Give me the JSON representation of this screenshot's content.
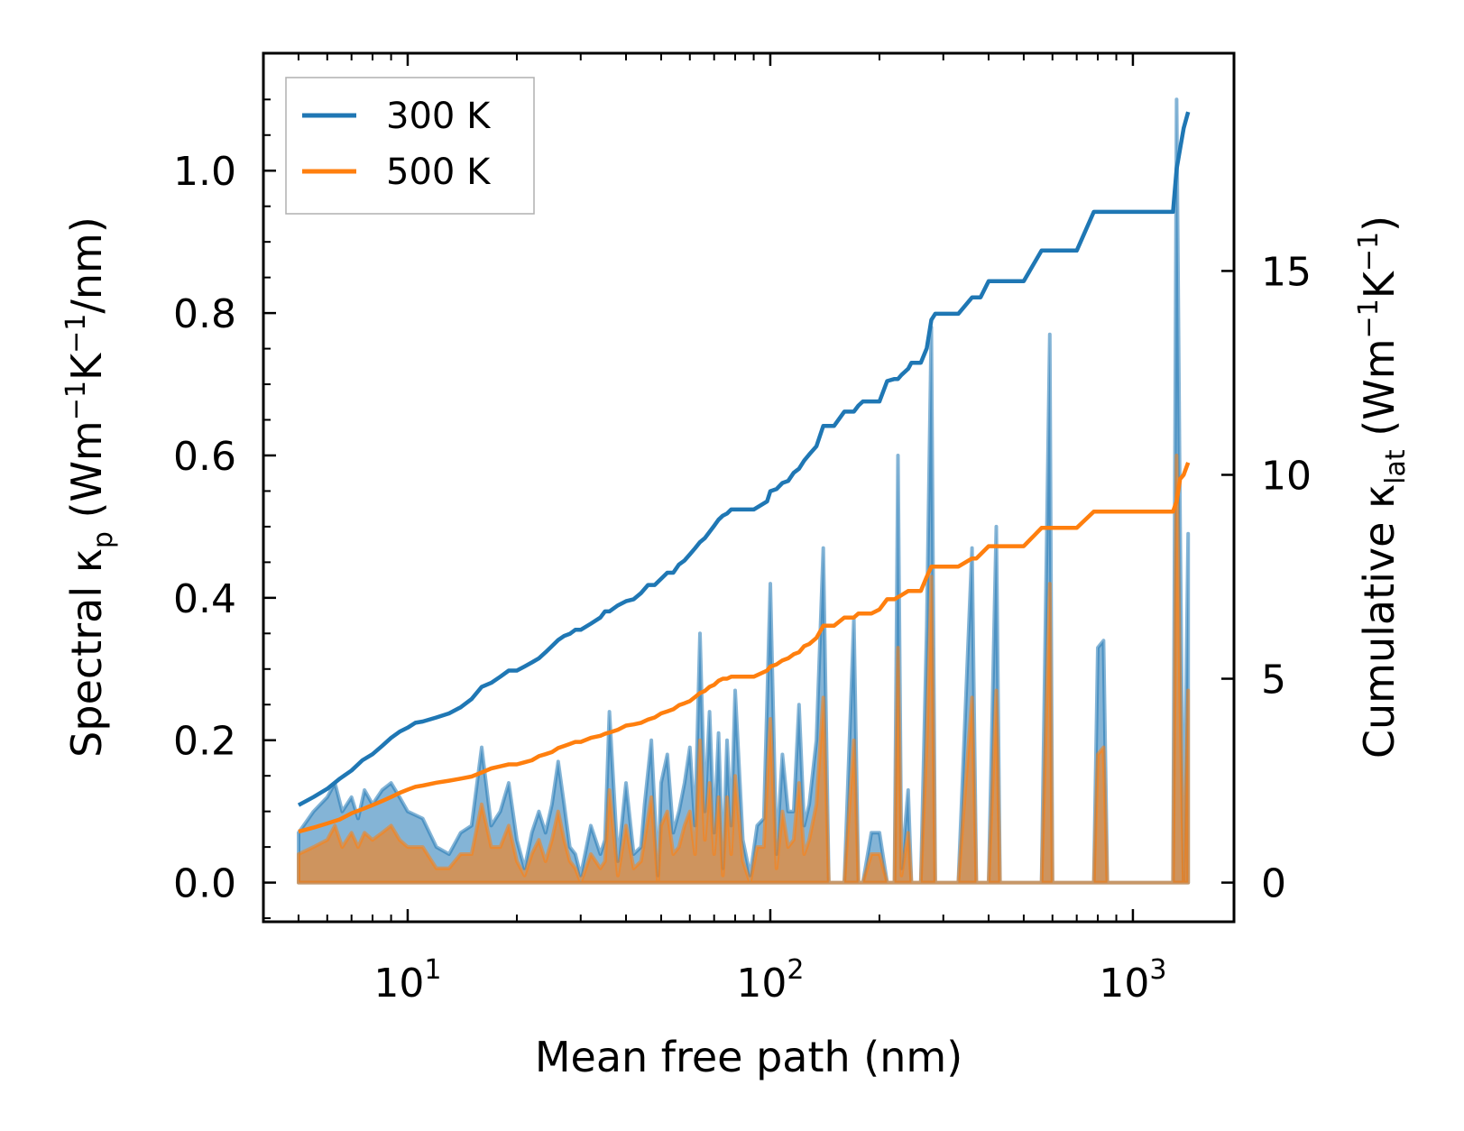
{
  "chart_data": {
    "type": "line",
    "title": "",
    "xlabel": "Mean free path (nm)",
    "ylabel_left_parts": {
      "pre": "Spectral κ",
      "sub": "p",
      "mid": " (Wm",
      "sup1": "−1",
      "mid2": "K",
      "sup2": "−1",
      "post": "/nm)"
    },
    "ylabel_right_parts": {
      "pre": "Cumulative κ",
      "sub": "lat",
      "mid": " (Wm",
      "sup1": "−1",
      "mid2": "K",
      "sup2": "−1",
      "post": ")"
    },
    "xscale": "log",
    "xlim": [
      4.0,
      1900
    ],
    "ylim_left": [
      -0.055,
      1.165
    ],
    "ylim_right": [
      -0.96,
      20.34
    ],
    "x_ticks": [
      {
        "value": 10,
        "base": "10",
        "exp": "1"
      },
      {
        "value": 100,
        "base": "10",
        "exp": "2"
      },
      {
        "value": 1000,
        "base": "10",
        "exp": "3"
      }
    ],
    "y_left_ticks": [
      {
        "value": 0.0,
        "label": "0.0"
      },
      {
        "value": 0.2,
        "label": "0.2"
      },
      {
        "value": 0.4,
        "label": "0.4"
      },
      {
        "value": 0.6,
        "label": "0.6"
      },
      {
        "value": 0.8,
        "label": "0.8"
      },
      {
        "value": 1.0,
        "label": "1.0"
      }
    ],
    "y_right_ticks": [
      {
        "value": 0,
        "label": "0"
      },
      {
        "value": 5,
        "label": "5"
      },
      {
        "value": 10,
        "label": "10"
      },
      {
        "value": 15,
        "label": "15"
      }
    ],
    "legend": {
      "position": "top-left",
      "entries": [
        {
          "label": "300 K",
          "color": "#1f77b4"
        },
        {
          "label": "500 K",
          "color": "#ff7f0e"
        }
      ]
    },
    "series": [
      {
        "name": "300 K",
        "color": "#1f77b4",
        "spectral": {
          "x": [
            5,
            5.5,
            6,
            6.3,
            6.6,
            7,
            7.3,
            7.6,
            8,
            8.5,
            9,
            9.5,
            10,
            11,
            12,
            13,
            14,
            15,
            16,
            17,
            18,
            19,
            20,
            21,
            22,
            23,
            24,
            25,
            26,
            27,
            28,
            29,
            30,
            32,
            34,
            35,
            36,
            38,
            40,
            42,
            44,
            45,
            47,
            49,
            50,
            52,
            54,
            56,
            58,
            60,
            62,
            64,
            66,
            68,
            70,
            72,
            74,
            76,
            78,
            80,
            84,
            88,
            92,
            96,
            100,
            104,
            108,
            112,
            116,
            120,
            124,
            128,
            134,
            140,
            145,
            150,
            160,
            170,
            175,
            180,
            190,
            200,
            210,
            220,
            225,
            230,
            240,
            245,
            250,
            260,
            270,
            278,
            285,
            300,
            330,
            360,
            370,
            380,
            400,
            420,
            430,
            440,
            500,
            560,
            590,
            600,
            650,
            700,
            780,
            800,
            830,
            850,
            1000,
            1200,
            1290,
            1320,
            1350,
            1380,
            1420
          ],
          "y": [
            0.07,
            0.1,
            0.12,
            0.14,
            0.1,
            0.12,
            0.09,
            0.13,
            0.11,
            0.13,
            0.14,
            0.12,
            0.1,
            0.09,
            0.05,
            0.04,
            0.07,
            0.08,
            0.19,
            0.08,
            0.1,
            0.14,
            0.06,
            0.02,
            0.07,
            0.1,
            0.07,
            0.11,
            0.17,
            0.11,
            0.05,
            0.04,
            0.01,
            0.08,
            0.04,
            0.06,
            0.24,
            0.03,
            0.14,
            0.04,
            0.05,
            0.11,
            0.2,
            0.01,
            0.14,
            0.18,
            0.07,
            0.1,
            0.14,
            0.19,
            0.08,
            0.35,
            0.1,
            0.24,
            0.07,
            0.21,
            0.02,
            0.2,
            0.08,
            0.27,
            0.06,
            0.01,
            0.08,
            0.09,
            0.42,
            0.04,
            0.18,
            0.1,
            0.1,
            0.25,
            0.08,
            0.11,
            0.2,
            0.47,
            0.0,
            0.0,
            0.0,
            0.37,
            0.0,
            0.0,
            0.07,
            0.07,
            0.0,
            0.0,
            0.6,
            0.02,
            0.13,
            0.0,
            0.0,
            0.0,
            0.36,
            0.78,
            0.0,
            0.0,
            0.0,
            0.47,
            0.0,
            0.0,
            0.0,
            0.5,
            0.0,
            0.0,
            0.0,
            0.0,
            0.77,
            0.0,
            0.0,
            0.0,
            0.0,
            0.33,
            0.34,
            0.0,
            0.0,
            0.0,
            0.0,
            1.1,
            0.5,
            0.0,
            0.49
          ]
        },
        "cumulative": {
          "x": [
            5,
            5.5,
            6,
            6.5,
            7,
            7.5,
            8,
            8.5,
            9,
            9.5,
            10,
            10.5,
            11,
            12,
            13,
            14,
            15,
            16,
            17,
            18,
            19,
            20,
            21,
            22,
            23,
            24,
            25,
            26,
            27,
            28,
            29,
            30,
            32,
            34,
            35,
            36,
            38,
            40,
            42,
            44,
            46,
            48,
            50,
            52,
            54,
            56,
            58,
            60,
            62,
            64,
            66,
            68,
            70,
            72,
            74,
            76,
            78,
            80,
            90,
            98,
            100,
            104,
            108,
            112,
            116,
            120,
            124,
            128,
            134,
            140,
            145,
            150,
            160,
            170,
            175,
            180,
            190,
            200,
            210,
            220,
            225,
            230,
            240,
            245,
            250,
            260,
            270,
            278,
            285,
            300,
            330,
            360,
            370,
            380,
            400,
            420,
            430,
            440,
            500,
            560,
            590,
            600,
            650,
            700,
            780,
            800,
            830,
            850,
            1000,
            1200,
            1290,
            1320,
            1350,
            1380,
            1420
          ],
          "y": [
            1.9,
            2.1,
            2.3,
            2.55,
            2.75,
            3.0,
            3.15,
            3.35,
            3.55,
            3.7,
            3.8,
            3.92,
            3.95,
            4.05,
            4.15,
            4.3,
            4.5,
            4.8,
            4.9,
            5.05,
            5.2,
            5.2,
            5.3,
            5.4,
            5.5,
            5.65,
            5.8,
            5.95,
            6.05,
            6.1,
            6.2,
            6.2,
            6.35,
            6.5,
            6.65,
            6.65,
            6.8,
            6.9,
            6.95,
            7.1,
            7.3,
            7.3,
            7.45,
            7.6,
            7.6,
            7.8,
            7.9,
            8.05,
            8.2,
            8.35,
            8.45,
            8.6,
            8.75,
            8.9,
            9.0,
            9.05,
            9.15,
            9.15,
            9.15,
            9.35,
            9.6,
            9.65,
            9.8,
            9.85,
            10.05,
            10.15,
            10.35,
            10.5,
            10.7,
            11.2,
            11.2,
            11.2,
            11.55,
            11.55,
            11.7,
            11.8,
            11.8,
            11.8,
            12.3,
            12.35,
            12.35,
            12.45,
            12.6,
            12.75,
            12.75,
            12.75,
            13.1,
            13.8,
            13.95,
            13.95,
            13.95,
            14.35,
            14.35,
            14.35,
            14.75,
            14.75,
            14.75,
            14.75,
            14.75,
            15.5,
            15.5,
            15.5,
            15.5,
            15.5,
            16.45,
            16.45,
            16.45,
            16.45,
            16.45,
            16.45,
            16.45,
            17.5,
            18.0,
            18.5,
            18.9
          ]
        }
      },
      {
        "name": "500 K",
        "color": "#ff7f0e",
        "spectral": {
          "x": [
            5,
            5.5,
            6,
            6.3,
            6.6,
            7,
            7.3,
            7.6,
            8,
            8.5,
            9,
            9.5,
            10,
            11,
            12,
            13,
            14,
            15,
            16,
            17,
            18,
            19,
            20,
            21,
            22,
            23,
            24,
            25,
            26,
            27,
            28,
            29,
            30,
            32,
            34,
            35,
            36,
            38,
            40,
            42,
            44,
            45,
            47,
            49,
            50,
            52,
            54,
            56,
            58,
            60,
            62,
            64,
            66,
            68,
            70,
            72,
            74,
            76,
            78,
            80,
            84,
            88,
            92,
            96,
            100,
            104,
            108,
            112,
            116,
            120,
            124,
            128,
            134,
            140,
            145,
            150,
            160,
            170,
            175,
            180,
            190,
            200,
            210,
            220,
            225,
            230,
            240,
            245,
            250,
            260,
            270,
            278,
            285,
            300,
            330,
            360,
            370,
            380,
            400,
            420,
            430,
            440,
            500,
            560,
            590,
            600,
            650,
            700,
            780,
            800,
            830,
            850,
            1000,
            1200,
            1290,
            1320,
            1350,
            1380,
            1420
          ],
          "y": [
            0.04,
            0.05,
            0.06,
            0.08,
            0.05,
            0.07,
            0.05,
            0.07,
            0.06,
            0.07,
            0.08,
            0.06,
            0.05,
            0.05,
            0.02,
            0.02,
            0.04,
            0.04,
            0.11,
            0.05,
            0.05,
            0.08,
            0.03,
            0.01,
            0.04,
            0.06,
            0.03,
            0.06,
            0.1,
            0.06,
            0.03,
            0.02,
            0.0,
            0.04,
            0.02,
            0.03,
            0.13,
            0.01,
            0.08,
            0.02,
            0.03,
            0.06,
            0.12,
            0.0,
            0.08,
            0.1,
            0.04,
            0.05,
            0.08,
            0.1,
            0.04,
            0.2,
            0.06,
            0.14,
            0.04,
            0.12,
            0.01,
            0.12,
            0.04,
            0.15,
            0.03,
            0.0,
            0.05,
            0.05,
            0.23,
            0.02,
            0.1,
            0.05,
            0.06,
            0.14,
            0.04,
            0.06,
            0.11,
            0.26,
            0.0,
            0.0,
            0.0,
            0.2,
            0.0,
            0.0,
            0.04,
            0.04,
            0.0,
            0.0,
            0.33,
            0.01,
            0.07,
            0.0,
            0.0,
            0.0,
            0.2,
            0.43,
            0.0,
            0.0,
            0.0,
            0.26,
            0.0,
            0.0,
            0.0,
            0.27,
            0.0,
            0.0,
            0.0,
            0.0,
            0.42,
            0.0,
            0.0,
            0.0,
            0.0,
            0.18,
            0.19,
            0.0,
            0.0,
            0.0,
            0.0,
            0.6,
            0.27,
            0.0,
            0.27
          ]
        },
        "cumulative": {
          "x": [
            5,
            5.5,
            6,
            6.5,
            7,
            7.5,
            8,
            8.5,
            9,
            9.5,
            10,
            10.5,
            11,
            12,
            13,
            14,
            15,
            16,
            17,
            18,
            19,
            20,
            21,
            22,
            23,
            24,
            25,
            26,
            27,
            28,
            29,
            30,
            32,
            34,
            35,
            36,
            38,
            40,
            42,
            44,
            46,
            48,
            50,
            52,
            54,
            56,
            58,
            60,
            62,
            64,
            66,
            68,
            70,
            72,
            74,
            76,
            78,
            80,
            90,
            98,
            100,
            104,
            108,
            112,
            116,
            120,
            124,
            128,
            134,
            140,
            145,
            150,
            160,
            170,
            175,
            180,
            190,
            200,
            210,
            220,
            225,
            230,
            240,
            245,
            250,
            260,
            270,
            278,
            285,
            300,
            330,
            360,
            370,
            380,
            400,
            420,
            430,
            440,
            500,
            560,
            590,
            600,
            650,
            700,
            780,
            800,
            830,
            850,
            1000,
            1200,
            1290,
            1320,
            1350,
            1380,
            1420
          ],
          "y": [
            1.25,
            1.35,
            1.45,
            1.55,
            1.7,
            1.8,
            1.9,
            2.0,
            2.1,
            2.2,
            2.28,
            2.35,
            2.38,
            2.45,
            2.5,
            2.55,
            2.6,
            2.7,
            2.8,
            2.85,
            2.9,
            2.9,
            2.95,
            3.0,
            3.1,
            3.15,
            3.2,
            3.3,
            3.35,
            3.4,
            3.45,
            3.45,
            3.55,
            3.6,
            3.65,
            3.68,
            3.75,
            3.85,
            3.88,
            3.92,
            4.0,
            4.05,
            4.15,
            4.2,
            4.25,
            4.35,
            4.4,
            4.45,
            4.55,
            4.65,
            4.7,
            4.8,
            4.85,
            4.95,
            5.0,
            5.0,
            5.05,
            5.05,
            5.05,
            5.2,
            5.3,
            5.35,
            5.45,
            5.5,
            5.6,
            5.65,
            5.8,
            5.85,
            6.0,
            6.3,
            6.3,
            6.3,
            6.5,
            6.5,
            6.6,
            6.6,
            6.6,
            6.7,
            6.95,
            6.95,
            7.0,
            7.05,
            7.15,
            7.15,
            7.15,
            7.15,
            7.5,
            7.75,
            7.75,
            7.75,
            7.75,
            7.95,
            7.95,
            8.05,
            8.25,
            8.25,
            8.25,
            8.25,
            8.25,
            8.7,
            8.7,
            8.7,
            8.7,
            8.7,
            9.1,
            9.1,
            9.1,
            9.1,
            9.1,
            9.1,
            9.1,
            9.35,
            9.9,
            10.0,
            10.3
          ]
        }
      }
    ]
  }
}
